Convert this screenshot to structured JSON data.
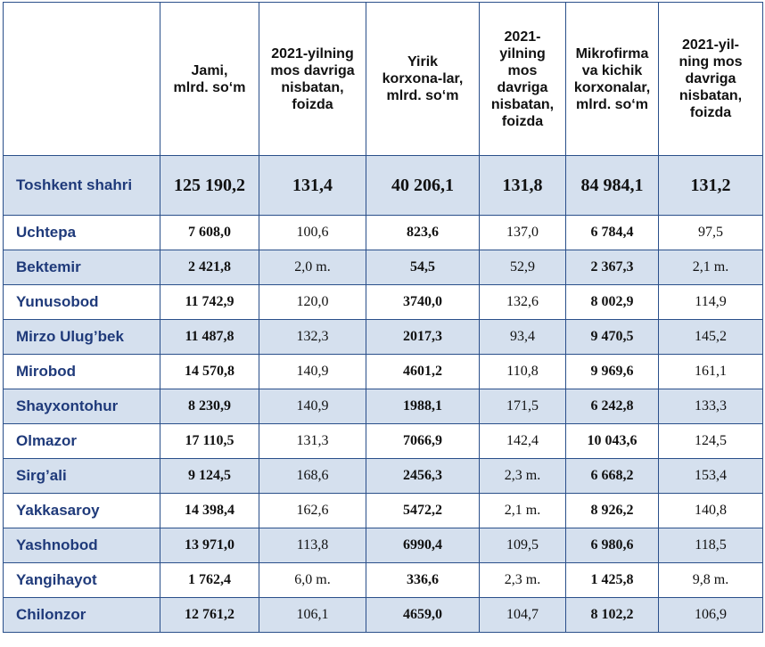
{
  "headers": [
    "",
    "Jami,\nmlrd. so‘m",
    "2021-yilning\nmos davriga\nnisbatan,\nfoizda",
    "Yirik\nkorxona-lar,\nmlrd. so‘m",
    "2021-\nyilning\nmos\ndavriga\nnisbatan,\nfoizda",
    "Mikrofirma\nva kichik\nkorxonalar,\nmlrd. so‘m",
    "2021-yil-\nning mos\ndavriga\nnisbatan,\nfoizda"
  ],
  "total": {
    "name": "Toshkent shahri",
    "total": "125 190,2",
    "total_pct": "131,4",
    "large": "40 206,1",
    "large_pct": "131,8",
    "small": "84 984,1",
    "small_pct": "131,2"
  },
  "rows": [
    {
      "name": "Uchtepa",
      "total": "7 608,0",
      "total_pct": "100,6",
      "large": "823,6",
      "large_pct": "137,0",
      "small": "6 784,4",
      "small_pct": "97,5"
    },
    {
      "name": "Bektemir",
      "total": "2 421,8",
      "total_pct": "2,0 m.",
      "large": "54,5",
      "large_pct": "52,9",
      "small": "2 367,3",
      "small_pct": "2,1 m."
    },
    {
      "name": "Yunusobod",
      "total": "11 742,9",
      "total_pct": "120,0",
      "large": "3740,0",
      "large_pct": "132,6",
      "small": "8 002,9",
      "small_pct": "114,9"
    },
    {
      "name": "Mirzo Ulug’bek",
      "total": "11 487,8",
      "total_pct": "132,3",
      "large": "2017,3",
      "large_pct": "93,4",
      "small": "9 470,5",
      "small_pct": "145,2"
    },
    {
      "name": "Mirobod",
      "total": "14 570,8",
      "total_pct": "140,9",
      "large": "4601,2",
      "large_pct": "110,8",
      "small": "9 969,6",
      "small_pct": "161,1"
    },
    {
      "name": "Shayxontohur",
      "total": "8 230,9",
      "total_pct": "140,9",
      "large": "1988,1",
      "large_pct": "171,5",
      "small": "6 242,8",
      "small_pct": "133,3"
    },
    {
      "name": "Olmazor",
      "total": "17 110,5",
      "total_pct": "131,3",
      "large": "7066,9",
      "large_pct": "142,4",
      "small": "10 043,6",
      "small_pct": "124,5"
    },
    {
      "name": "Sirg’ali",
      "total": "9 124,5",
      "total_pct": "168,6",
      "large": "2456,3",
      "large_pct": "2,3 m.",
      "small": "6 668,2",
      "small_pct": "153,4"
    },
    {
      "name": "Yakkasaroy",
      "total": "14 398,4",
      "total_pct": "162,6",
      "large": "5472,2",
      "large_pct": "2,1 m.",
      "small": "8 926,2",
      "small_pct": "140,8"
    },
    {
      "name": "Yashnobod",
      "total": "13 971,0",
      "total_pct": "113,8",
      "large": "6990,4",
      "large_pct": "109,5",
      "small": "6 980,6",
      "small_pct": "118,5"
    },
    {
      "name": "Yangihayot",
      "total": "1 762,4",
      "total_pct": "6,0 m.",
      "large": "336,6",
      "large_pct": "2,3 m.",
      "small": "1 425,8",
      "small_pct": "9,8 m."
    },
    {
      "name": "Chilonzor",
      "total": "12 761,2",
      "total_pct": "106,1",
      "large": "4659,0",
      "large_pct": "104,7",
      "small": "8 102,2",
      "small_pct": "106,9"
    }
  ],
  "colors": {
    "border": "#2a4f8a",
    "shade": "#d5e0ee",
    "district_text": "#1f3a7a"
  }
}
